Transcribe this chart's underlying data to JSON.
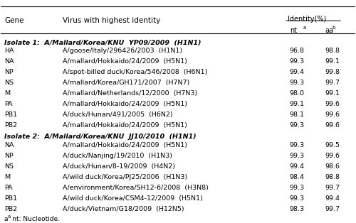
{
  "title_gene": "Gene",
  "title_virus": "Virus with highest identity",
  "title_identity": "Identity(%)",
  "title_nt": "nt",
  "title_aa": "aa",
  "footnote": "a  nt: Nucleotide.",
  "isolate1_header": "Isolate 1:  A/Mallard/Korea/KNU  YP09/2009  (H1N1)",
  "isolate2_header": "Isolate 2:  A/Mallard/Korea/KNU  JJ10/2010  (H1N1)",
  "isolate1_rows": [
    [
      "HA",
      "A/goose/Italy/296426/2003  (H1N1)",
      "96.8",
      "98.8"
    ],
    [
      "NA",
      "A/mallard/Hokkaido/24/2009  (H5N1)",
      "99.3",
      "99.1"
    ],
    [
      "NP",
      "A/spot-billed duck/Korea/546/2008  (H6N1)",
      "99.4",
      "99.8"
    ],
    [
      "NS",
      "A/mallard/Korea/GH171/2007  (H7N7)",
      "99.3",
      "99.7"
    ],
    [
      "M",
      "A/mallard/Netherlands/12/2000  (H7N3)",
      "98.0",
      "99.1"
    ],
    [
      "PA",
      "A/mallard/Hokkaido/24/2009  (H5N1)",
      "99.1",
      "99.6"
    ],
    [
      "PB1",
      "A/duck/Hunan/491/2005  (H6N2)",
      "98.1",
      "99.6"
    ],
    [
      "PB2",
      "A/mallard/Hokkaido/24/2009  (H5N1)",
      "99.3",
      "99.6"
    ]
  ],
  "isolate2_rows": [
    [
      "NA",
      "A/mallard/Hokkaido/24/2009  (H5N1)",
      "99.3",
      "99.5"
    ],
    [
      "NP",
      "A/duck/Nanjing/19/2010  (H1N3)",
      "99.3",
      "99.6"
    ],
    [
      "NS",
      "A/duck/Hunan/8-19/2009  (H4N2)",
      "99.4",
      "98.6"
    ],
    [
      "M",
      "A/wild duck/Korea/PJ25/2006  (H1N3)",
      "98.4",
      "98.8"
    ],
    [
      "PA",
      "A/environment/Korea/SH12-6/2008  (H3N8)",
      "99.3",
      "99.7"
    ],
    [
      "PB1",
      "A/wild duck/Korea/CSM4-12/2009  (H5N1)",
      "99.3",
      "99.4"
    ],
    [
      "PB2",
      "A/duck/Vietnam/G18/2009  (H12N5)",
      "98.3",
      "99.7"
    ]
  ]
}
